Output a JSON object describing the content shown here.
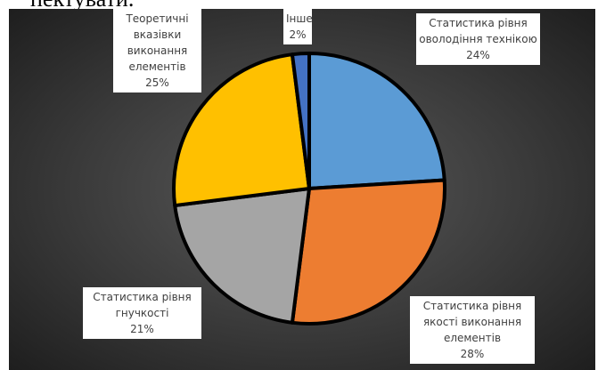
{
  "header": "пектувати.",
  "chart_data": {
    "type": "pie",
    "categories": [
      "Статистика рівня оволодіння технікою",
      "Статистика рівня якості виконання елементів",
      "Статистика рівня гнучкості",
      "Теоретичні вказівки виконання елементів",
      "Інше"
    ],
    "values": [
      24,
      28,
      21,
      25,
      2
    ],
    "value_labels": [
      "24%",
      "28%",
      "21%",
      "25%",
      "2%"
    ],
    "colors": [
      "#5b9bd5",
      "#ed7d31",
      "#a5a5a5",
      "#ffc000",
      "#4472c4"
    ]
  }
}
